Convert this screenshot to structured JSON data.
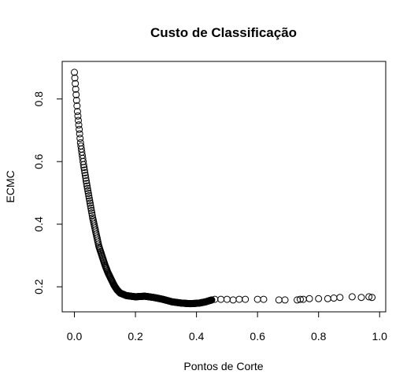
{
  "chart_data": {
    "type": "scatter",
    "title": "Custo de Classificação",
    "xlabel": "Pontos de Corte",
    "ylabel": "ECMC",
    "xlim": [
      -0.04,
      1.02
    ],
    "ylim": [
      0.12,
      0.92
    ],
    "x_ticks": [
      "0.0",
      "0.2",
      "0.4",
      "0.6",
      "0.8",
      "1.0"
    ],
    "y_ticks": [
      "0.2",
      "0.4",
      "0.6",
      "0.8"
    ],
    "marker": "open-circle",
    "grid": false,
    "legend": "none",
    "curve_anchors": [
      [
        0.0,
        0.885
      ],
      [
        0.01,
        0.76
      ],
      [
        0.02,
        0.66
      ],
      [
        0.03,
        0.59
      ],
      [
        0.04,
        0.53
      ],
      [
        0.05,
        0.475
      ],
      [
        0.06,
        0.42
      ],
      [
        0.07,
        0.375
      ],
      [
        0.08,
        0.33
      ],
      [
        0.09,
        0.3
      ],
      [
        0.1,
        0.27
      ],
      [
        0.11,
        0.245
      ],
      [
        0.12,
        0.225
      ],
      [
        0.13,
        0.205
      ],
      [
        0.14,
        0.19
      ],
      [
        0.15,
        0.18
      ],
      [
        0.17,
        0.172
      ],
      [
        0.2,
        0.168
      ],
      [
        0.23,
        0.17
      ],
      [
        0.26,
        0.166
      ],
      [
        0.29,
        0.16
      ],
      [
        0.32,
        0.152
      ],
      [
        0.35,
        0.148
      ],
      [
        0.38,
        0.146
      ],
      [
        0.41,
        0.148
      ],
      [
        0.43,
        0.152
      ],
      [
        0.45,
        0.158
      ]
    ],
    "tail_points": [
      [
        0.46,
        0.16
      ],
      [
        0.48,
        0.16
      ],
      [
        0.5,
        0.16
      ],
      [
        0.52,
        0.158
      ],
      [
        0.54,
        0.16
      ],
      [
        0.56,
        0.16
      ],
      [
        0.6,
        0.16
      ],
      [
        0.62,
        0.16
      ],
      [
        0.67,
        0.158
      ],
      [
        0.69,
        0.158
      ],
      [
        0.73,
        0.158
      ],
      [
        0.74,
        0.16
      ],
      [
        0.75,
        0.16
      ],
      [
        0.77,
        0.162
      ],
      [
        0.8,
        0.162
      ],
      [
        0.83,
        0.162
      ],
      [
        0.85,
        0.164
      ],
      [
        0.87,
        0.166
      ],
      [
        0.91,
        0.168
      ],
      [
        0.94,
        0.166
      ],
      [
        0.965,
        0.168
      ],
      [
        0.975,
        0.166
      ]
    ]
  }
}
